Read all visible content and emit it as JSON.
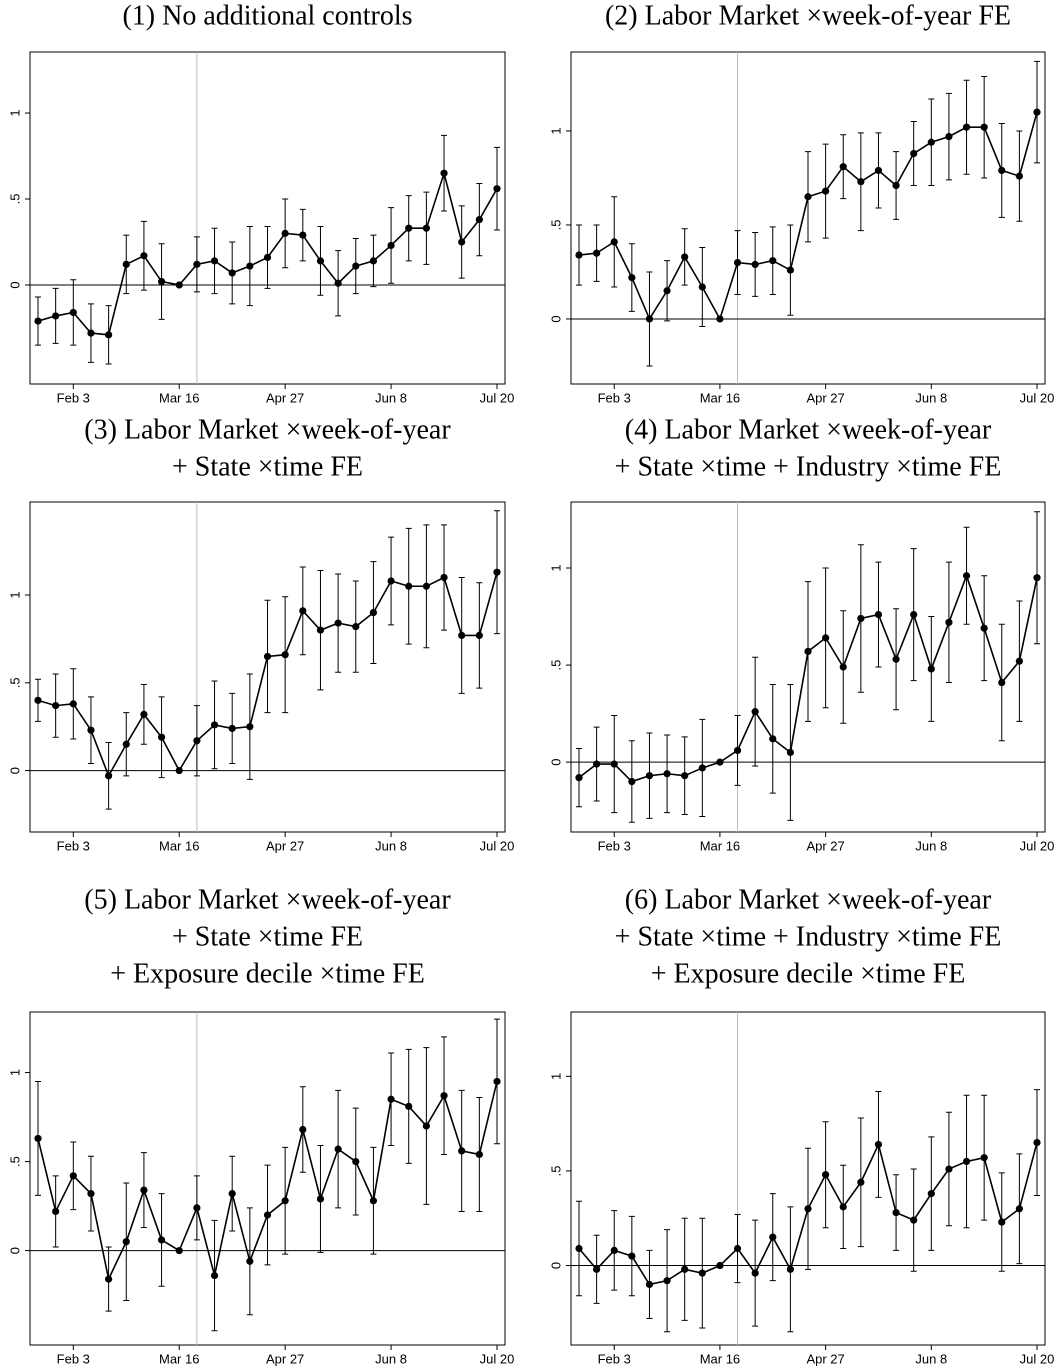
{
  "chart_data": [
    {
      "type": "line",
      "title": [
        "(1) No additional controls"
      ],
      "categories": [
        null,
        null,
        "Feb 3",
        null,
        null,
        null,
        null,
        null,
        "Mar 16",
        null,
        null,
        null,
        null,
        null,
        "Apr 27",
        null,
        null,
        null,
        null,
        null,
        "Jun 8",
        null,
        null,
        null,
        null,
        null,
        "Jul 20"
      ],
      "values": [
        -0.21,
        -0.18,
        -0.16,
        -0.28,
        -0.29,
        0.12,
        0.17,
        0.02,
        0,
        0.12,
        0.14,
        0.07,
        0.11,
        0.16,
        0.3,
        0.29,
        0.14,
        0.01,
        0.11,
        0.14,
        0.23,
        0.33,
        0.33,
        0.65,
        0.25,
        0.38,
        0.56
      ],
      "errors": [
        0.14,
        0.16,
        0.19,
        0.17,
        0.17,
        0.17,
        0.2,
        0.22,
        0,
        0.16,
        0.19,
        0.18,
        0.23,
        0.18,
        0.2,
        0.15,
        0.2,
        0.19,
        0.16,
        0.15,
        0.22,
        0.19,
        0.21,
        0.22,
        0.21,
        0.21,
        0.24
      ],
      "ylim": [
        -0.576,
        1.355
      ],
      "yticks": [
        0,
        {
          "value": 0.5,
          "label": ".5"
        },
        1
      ],
      "color": "#000000",
      "hline": 0,
      "vline": 9
    },
    {
      "type": "line",
      "title": [
        "(2) Labor Market ×week-of-year FE"
      ],
      "categories": [
        null,
        null,
        "Feb 3",
        null,
        null,
        null,
        null,
        null,
        "Mar 16",
        null,
        null,
        null,
        null,
        null,
        "Apr 27",
        null,
        null,
        null,
        null,
        null,
        "Jun 8",
        null,
        null,
        null,
        null,
        null,
        "Jul 20"
      ],
      "values": [
        0.34,
        0.35,
        0.41,
        0.22,
        0,
        0.15,
        0.33,
        0.17,
        0,
        0.3,
        0.29,
        0.31,
        0.26,
        0.65,
        0.68,
        0.81,
        0.73,
        0.79,
        0.71,
        0.88,
        0.94,
        0.97,
        1.02,
        1.02,
        0.79,
        0.76,
        1.1
      ],
      "errors": [
        0.16,
        0.15,
        0.24,
        0.18,
        0.25,
        0.16,
        0.15,
        0.21,
        0,
        0.17,
        0.17,
        0.18,
        0.24,
        0.24,
        0.25,
        0.17,
        0.26,
        0.2,
        0.18,
        0.17,
        0.23,
        0.23,
        0.25,
        0.27,
        0.25,
        0.24,
        0.27
      ],
      "ylim": [
        -0.346,
        1.42
      ],
      "yticks": [
        0,
        {
          "value": 0.5,
          "label": ".5"
        },
        1
      ],
      "color": "#000000",
      "hline": 0,
      "vline": 9
    },
    {
      "type": "line",
      "title": [
        "(3) Labor Market ×week-of-year",
        "+ State ×time FE"
      ],
      "categories": [
        null,
        null,
        "Feb 3",
        null,
        null,
        null,
        null,
        null,
        "Mar 16",
        null,
        null,
        null,
        null,
        null,
        "Apr 27",
        null,
        null,
        null,
        null,
        null,
        "Jun 8",
        null,
        null,
        null,
        null,
        null,
        "Jul 20"
      ],
      "values": [
        0.4,
        0.37,
        0.38,
        0.23,
        -0.03,
        0.15,
        0.32,
        0.19,
        0,
        0.17,
        0.26,
        0.24,
        0.25,
        0.65,
        0.66,
        0.91,
        0.8,
        0.84,
        0.82,
        0.9,
        1.08,
        1.05,
        1.05,
        1.1,
        0.77,
        0.77,
        1.13
      ],
      "errors": [
        0.12,
        0.18,
        0.2,
        0.19,
        0.19,
        0.18,
        0.17,
        0.23,
        0,
        0.2,
        0.25,
        0.2,
        0.3,
        0.32,
        0.33,
        0.25,
        0.34,
        0.28,
        0.26,
        0.29,
        0.25,
        0.33,
        0.35,
        0.3,
        0.33,
        0.3,
        0.35
      ],
      "ylim": [
        -0.35,
        1.53
      ],
      "yticks": [
        0,
        {
          "value": 0.5,
          "label": ".5"
        },
        1
      ],
      "color": "#000000",
      "hline": 0,
      "vline": 9
    },
    {
      "type": "line",
      "title": [
        "(4) Labor Market ×week-of-year",
        "+ State ×time + Industry ×time FE"
      ],
      "categories": [
        null,
        null,
        "Feb 3",
        null,
        null,
        null,
        null,
        null,
        "Mar 16",
        null,
        null,
        null,
        null,
        null,
        "Apr 27",
        null,
        null,
        null,
        null,
        null,
        "Jun 8",
        null,
        null,
        null,
        null,
        null,
        "Jul 20"
      ],
      "values": [
        -0.08,
        -0.01,
        -0.01,
        -0.1,
        -0.07,
        -0.06,
        -0.07,
        -0.03,
        0,
        0.06,
        0.26,
        0.12,
        0.05,
        0.57,
        0.64,
        0.49,
        0.74,
        0.76,
        0.53,
        0.76,
        0.48,
        0.72,
        0.96,
        0.69,
        0.41,
        0.52,
        0.95
      ],
      "errors": [
        0.15,
        0.19,
        0.25,
        0.21,
        0.22,
        0.2,
        0.2,
        0.25,
        0,
        0.18,
        0.28,
        0.28,
        0.35,
        0.36,
        0.36,
        0.29,
        0.38,
        0.27,
        0.26,
        0.34,
        0.27,
        0.31,
        0.25,
        0.27,
        0.3,
        0.31,
        0.34
      ],
      "ylim": [
        -0.36,
        1.34
      ],
      "yticks": [
        0,
        {
          "value": 0.5,
          "label": ".5"
        },
        1
      ],
      "color": "#000000",
      "hline": 0,
      "vline": 9
    },
    {
      "type": "line",
      "title": [
        "(5) Labor Market ×week-of-year",
        "+ State ×time FE",
        "+ Exposure decile ×time FE"
      ],
      "categories": [
        null,
        null,
        "Feb 3",
        null,
        null,
        null,
        null,
        null,
        "Mar 16",
        null,
        null,
        null,
        null,
        null,
        "Apr 27",
        null,
        null,
        null,
        null,
        null,
        "Jun 8",
        null,
        null,
        null,
        null,
        null,
        "Jul 20"
      ],
      "values": [
        0.63,
        0.22,
        0.42,
        0.32,
        -0.16,
        0.05,
        0.34,
        0.06,
        0,
        0.24,
        -0.14,
        0.32,
        -0.06,
        0.2,
        0.28,
        0.68,
        0.29,
        0.57,
        0.5,
        0.28,
        0.85,
        0.81,
        0.7,
        0.87,
        0.56,
        0.54,
        0.95
      ],
      "errors": [
        0.32,
        0.2,
        0.19,
        0.21,
        0.18,
        0.33,
        0.21,
        0.26,
        0,
        0.18,
        0.31,
        0.21,
        0.3,
        0.28,
        0.3,
        0.24,
        0.3,
        0.33,
        0.3,
        0.3,
        0.26,
        0.32,
        0.44,
        0.33,
        0.34,
        0.32,
        0.35
      ],
      "ylim": [
        -0.53,
        1.34
      ],
      "yticks": [
        0,
        {
          "value": 0.5,
          "label": ".5"
        },
        1
      ],
      "color": "#000000",
      "hline": 0,
      "vline": 9
    },
    {
      "type": "line",
      "title": [
        "(6) Labor Market ×week-of-year",
        "+ State ×time + Industry ×time FE",
        "+ Exposure decile ×time FE"
      ],
      "categories": [
        null,
        null,
        "Feb 3",
        null,
        null,
        null,
        null,
        null,
        "Mar 16",
        null,
        null,
        null,
        null,
        null,
        "Apr 27",
        null,
        null,
        null,
        null,
        null,
        "Jun 8",
        null,
        null,
        null,
        null,
        null,
        "Jul 20"
      ],
      "values": [
        0.09,
        -0.02,
        0.08,
        0.05,
        -0.1,
        -0.08,
        -0.02,
        -0.04,
        0,
        0.09,
        -0.04,
        0.15,
        -0.02,
        0.3,
        0.48,
        0.31,
        0.44,
        0.64,
        0.28,
        0.24,
        0.38,
        0.51,
        0.55,
        0.57,
        0.23,
        0.3,
        0.65
      ],
      "errors": [
        0.25,
        0.18,
        0.21,
        0.21,
        0.18,
        0.27,
        0.27,
        0.29,
        0,
        0.18,
        0.28,
        0.23,
        0.33,
        0.32,
        0.28,
        0.22,
        0.34,
        0.28,
        0.2,
        0.27,
        0.3,
        0.3,
        0.35,
        0.33,
        0.26,
        0.29,
        0.28
      ],
      "ylim": [
        -0.42,
        1.34
      ],
      "yticks": [
        0,
        {
          "value": 0.5,
          "label": ".5"
        },
        1
      ],
      "color": "#000000",
      "hline": 0,
      "vline": 9
    }
  ]
}
